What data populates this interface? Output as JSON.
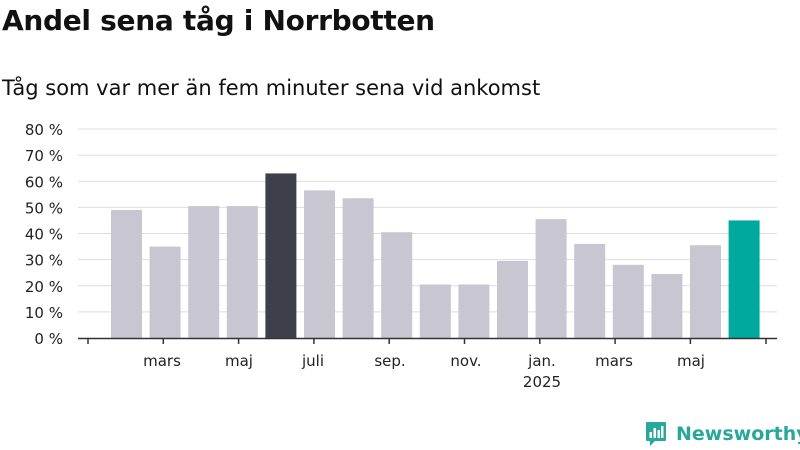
{
  "header": {
    "title": "Andel sena tåg i Norrbotten",
    "subtitle": "Tåg som var mer än fem minuter sena vid ankomst"
  },
  "brand": {
    "name": "Newsworthy"
  },
  "colors": {
    "bar": "#c8c7d1",
    "highlight_prev": "#3f3e4b",
    "highlight_current": "#00a99d",
    "grid": "#dddddd",
    "axis": "#333333",
    "brand": "#27a89a"
  },
  "chart_data": {
    "type": "bar",
    "grid": true,
    "ylim": [
      0,
      80
    ],
    "y_ticks": [
      "0 %",
      "10 %",
      "20 %",
      "30 %",
      "40 %",
      "50 %",
      "60 %",
      "70 %",
      "80 %"
    ],
    "x_tick_labels": [
      {
        "label": "mars",
        "sub": ""
      },
      {
        "label": "maj",
        "sub": ""
      },
      {
        "label": "juli",
        "sub": ""
      },
      {
        "label": "sep.",
        "sub": ""
      },
      {
        "label": "nov.",
        "sub": ""
      },
      {
        "label": "jan.",
        "sub": "2025"
      },
      {
        "label": "mars",
        "sub": ""
      },
      {
        "label": "maj",
        "sub": ""
      }
    ],
    "values": [
      49,
      35,
      50.5,
      50.5,
      63,
      56.5,
      53.5,
      40.5,
      20.5,
      20.5,
      29.5,
      45.5,
      36,
      28,
      24.5,
      35.5,
      45
    ],
    "highlight": {
      "previous_year_index": 4,
      "current_index": 16
    }
  }
}
